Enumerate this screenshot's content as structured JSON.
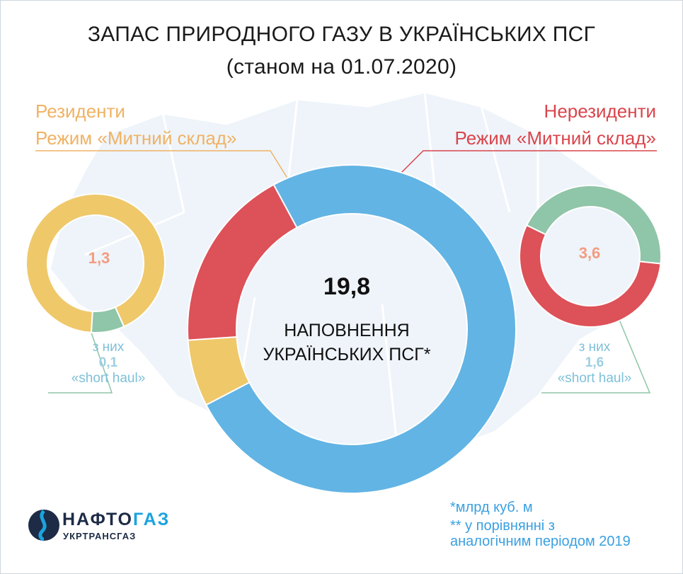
{
  "title_line1": "ЗАПАС ПРИРОДНОГО ГАЗУ В УКРАЇНСЬКИХ ПСГ",
  "title_line2": "(станом на 01.07.2020)",
  "labels": {
    "residents": "Резиденти",
    "residents_mode": "Режим «Митний склад»",
    "nonresidents": "Нерезиденти",
    "nonresidents_mode": "Режим «Митний склад»"
  },
  "center": {
    "value": "19,8",
    "line1": "НАПОВНЕННЯ",
    "line2": "УКРАЇНСЬКИХ ПСГ*"
  },
  "left": {
    "value": "1,3",
    "sub1": "з них",
    "sub_value": "0,1",
    "sub2": "«short haul»"
  },
  "right": {
    "value": "3,6",
    "sub1": "з них",
    "sub_value": "1,6",
    "sub2": "«short haul»"
  },
  "footnotes": {
    "line1": "*млрд куб. м",
    "line2": "** у порівнянні з",
    "line3": "аналогічним періодом 2019"
  },
  "logo": {
    "name_part1": "НАФТО",
    "name_part2": "ГАЗ",
    "subtitle": "УКРТРАНСГАЗ"
  },
  "colors": {
    "blue": "#62b4e4",
    "yellow": "#efc86a",
    "red": "#dd5158",
    "green": "#8fc5a8"
  },
  "chart_data": [
    {
      "type": "pie",
      "donut": true,
      "name": "center",
      "slices": [
        {
          "value": 14.9,
          "color": "#62b4e4"
        },
        {
          "value": 1.3,
          "color": "#efc86a"
        },
        {
          "value": 3.6,
          "color": "#dd5158"
        }
      ]
    },
    {
      "type": "pie",
      "donut": true,
      "name": "left",
      "slices": [
        {
          "value": 1.2,
          "color": "#efc86a"
        },
        {
          "value": 0.1,
          "color": "#8fc5a8"
        }
      ]
    },
    {
      "type": "pie",
      "donut": true,
      "name": "right",
      "slices": [
        {
          "value": 2.0,
          "color": "#dd5158"
        },
        {
          "value": 1.6,
          "color": "#8fc5a8"
        }
      ]
    }
  ]
}
